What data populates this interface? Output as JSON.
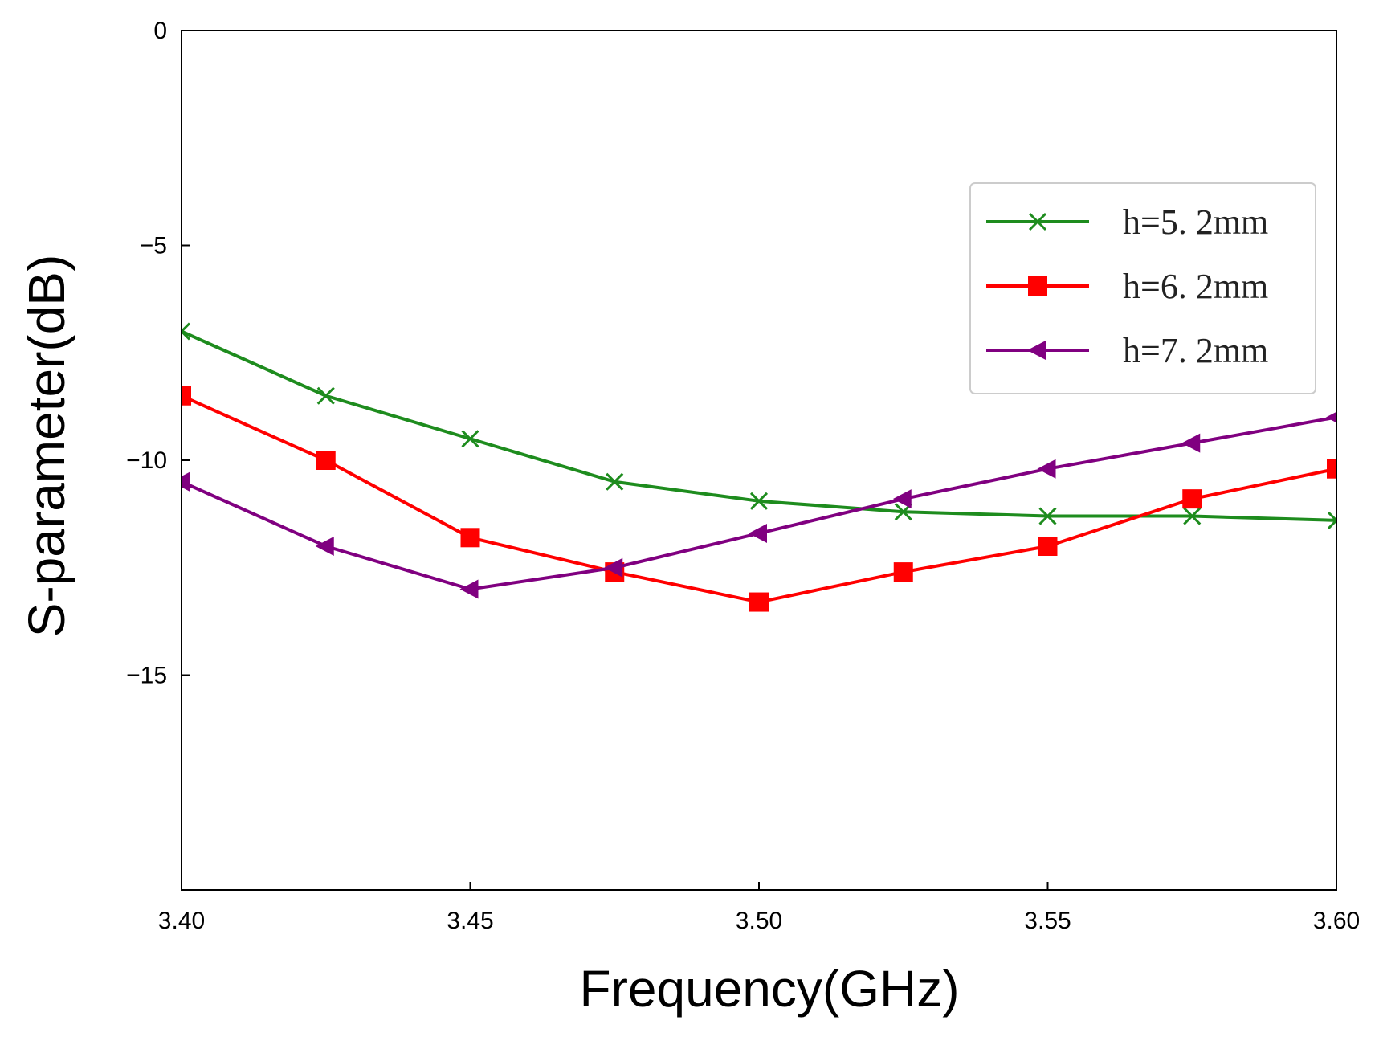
{
  "chart_data": {
    "type": "line",
    "title": "",
    "xlabel": "Frequency(GHz)",
    "ylabel": "S-parameter(dB)",
    "xlim": [
      3.4,
      3.6
    ],
    "ylim": [
      -20,
      0
    ],
    "xticks": [
      3.4,
      3.45,
      3.5,
      3.55,
      3.6
    ],
    "xtick_labels": [
      "3.40",
      "3.45",
      "3.50",
      "3.55",
      "3.60"
    ],
    "yticks": [
      0,
      -5,
      -10,
      -15
    ],
    "ytick_labels": [
      "0",
      "-5",
      "-10",
      "-15"
    ],
    "grid": false,
    "legend_position": "upper-right",
    "x": [
      3.4,
      3.425,
      3.45,
      3.475,
      3.5,
      3.525,
      3.55,
      3.575,
      3.6
    ],
    "series": [
      {
        "name": "h=5. 2mm",
        "color": "#1e8c1e",
        "marker": "x",
        "values": [
          -7.0,
          -8.5,
          -9.5,
          -10.5,
          -10.95,
          -11.2,
          -11.3,
          -11.3,
          -11.4
        ]
      },
      {
        "name": "h=6. 2mm",
        "color": "#ff0000",
        "marker": "square",
        "values": [
          -8.5,
          -10.0,
          -11.8,
          -12.6,
          -13.3,
          -12.6,
          -12.0,
          -10.9,
          -10.2
        ]
      },
      {
        "name": "h=7. 2mm",
        "color": "#800080",
        "marker": "triangle-left",
        "values": [
          -10.5,
          -12.0,
          -13.0,
          -12.5,
          -11.7,
          -10.9,
          -10.2,
          -9.6,
          -9.0
        ]
      }
    ]
  }
}
